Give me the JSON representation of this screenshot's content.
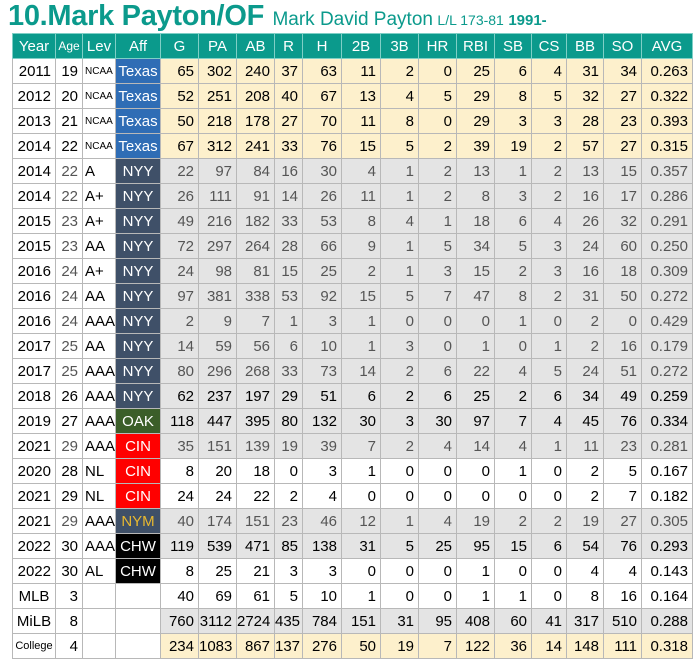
{
  "header": {
    "title": "10.Mark Payton/OF",
    "full_name": "Mark David Payton",
    "bats_throws": "L/L 173-81",
    "born": "1991-"
  },
  "colors": {
    "header_bg": "#0b9a8c",
    "college_bg": "#fdf0cc",
    "milb_bg": "#e4e4e4",
    "texas": "#2f6db5",
    "nyy": "#3f5068",
    "oak": "#3b5e29",
    "cin": "#ff0000",
    "nym": "#3f5068",
    "nym_text": "#e8b830",
    "chw": "#000000"
  },
  "columns": [
    "Year",
    "Age",
    "Lev",
    "Aff",
    "G",
    "PA",
    "AB",
    "R",
    "H",
    "2B",
    "3B",
    "HR",
    "RBI",
    "SB",
    "CS",
    "BB",
    "SO",
    "AVG"
  ],
  "rows": [
    {
      "year": "2011",
      "age": "19",
      "lev": "NCAA",
      "aff": "Texas",
      "type": "college",
      "s": [
        "65",
        "302",
        "240",
        "37",
        "63",
        "11",
        "2",
        "0",
        "25",
        "6",
        "4",
        "31",
        "34",
        "0.263"
      ]
    },
    {
      "year": "2012",
      "age": "20",
      "lev": "NCAA",
      "aff": "Texas",
      "type": "college",
      "s": [
        "52",
        "251",
        "208",
        "40",
        "67",
        "13",
        "4",
        "5",
        "29",
        "8",
        "5",
        "32",
        "27",
        "0.322"
      ]
    },
    {
      "year": "2013",
      "age": "21",
      "lev": "NCAA",
      "aff": "Texas",
      "type": "college",
      "s": [
        "50",
        "218",
        "178",
        "27",
        "70",
        "11",
        "8",
        "0",
        "29",
        "3",
        "3",
        "28",
        "23",
        "0.393"
      ]
    },
    {
      "year": "2014",
      "age": "22",
      "lev": "NCAA",
      "aff": "Texas",
      "type": "college",
      "s": [
        "67",
        "312",
        "241",
        "33",
        "76",
        "15",
        "5",
        "2",
        "39",
        "19",
        "2",
        "57",
        "27",
        "0.315"
      ]
    },
    {
      "year": "2014",
      "age": "22",
      "lev": "A",
      "aff": "NYY",
      "type": "milb dim",
      "s": [
        "22",
        "97",
        "84",
        "16",
        "30",
        "4",
        "1",
        "2",
        "13",
        "1",
        "2",
        "13",
        "15",
        "0.357"
      ]
    },
    {
      "year": "2014",
      "age": "22",
      "lev": "A+",
      "aff": "NYY",
      "type": "milb dim",
      "s": [
        "26",
        "111",
        "91",
        "14",
        "26",
        "11",
        "1",
        "2",
        "8",
        "3",
        "2",
        "16",
        "17",
        "0.286"
      ]
    },
    {
      "year": "2015",
      "age": "23",
      "lev": "A+",
      "aff": "NYY",
      "type": "milb dim",
      "s": [
        "49",
        "216",
        "182",
        "33",
        "53",
        "8",
        "4",
        "1",
        "18",
        "6",
        "4",
        "26",
        "32",
        "0.291"
      ]
    },
    {
      "year": "2015",
      "age": "23",
      "lev": "AA",
      "aff": "NYY",
      "type": "milb dim",
      "s": [
        "72",
        "297",
        "264",
        "28",
        "66",
        "9",
        "1",
        "5",
        "34",
        "5",
        "3",
        "24",
        "60",
        "0.250"
      ]
    },
    {
      "year": "2016",
      "age": "24",
      "lev": "A+",
      "aff": "NYY",
      "type": "milb dim",
      "s": [
        "24",
        "98",
        "81",
        "15",
        "25",
        "2",
        "1",
        "3",
        "15",
        "2",
        "3",
        "16",
        "18",
        "0.309"
      ]
    },
    {
      "year": "2016",
      "age": "24",
      "lev": "AA",
      "aff": "NYY",
      "type": "milb dim",
      "s": [
        "97",
        "381",
        "338",
        "53",
        "92",
        "15",
        "5",
        "7",
        "47",
        "8",
        "2",
        "31",
        "50",
        "0.272"
      ]
    },
    {
      "year": "2016",
      "age": "24",
      "lev": "AAA",
      "aff": "NYY",
      "type": "milb dim",
      "s": [
        "2",
        "9",
        "7",
        "1",
        "3",
        "1",
        "0",
        "0",
        "0",
        "1",
        "0",
        "2",
        "0",
        "0.429"
      ]
    },
    {
      "year": "2017",
      "age": "25",
      "lev": "AA",
      "aff": "NYY",
      "type": "milb dim",
      "s": [
        "14",
        "59",
        "56",
        "6",
        "10",
        "1",
        "3",
        "0",
        "1",
        "0",
        "1",
        "2",
        "16",
        "0.179"
      ]
    },
    {
      "year": "2017",
      "age": "25",
      "lev": "AAA",
      "aff": "NYY",
      "type": "milb dim",
      "s": [
        "80",
        "296",
        "268",
        "33",
        "73",
        "14",
        "2",
        "6",
        "22",
        "4",
        "5",
        "24",
        "51",
        "0.272"
      ]
    },
    {
      "year": "2018",
      "age": "26",
      "lev": "AAA",
      "aff": "NYY",
      "type": "milb",
      "s": [
        "62",
        "237",
        "197",
        "29",
        "51",
        "6",
        "2",
        "6",
        "25",
        "2",
        "6",
        "34",
        "49",
        "0.259"
      ]
    },
    {
      "year": "2019",
      "age": "27",
      "lev": "AAA",
      "aff": "OAK",
      "type": "milb",
      "s": [
        "118",
        "447",
        "395",
        "80",
        "132",
        "30",
        "3",
        "30",
        "97",
        "7",
        "4",
        "45",
        "76",
        "0.334"
      ]
    },
    {
      "year": "2021",
      "age": "29",
      "lev": "AAA",
      "aff": "CIN",
      "type": "milb dim",
      "s": [
        "35",
        "151",
        "139",
        "19",
        "39",
        "7",
        "2",
        "4",
        "14",
        "4",
        "1",
        "11",
        "23",
        "0.281"
      ]
    },
    {
      "year": "2020",
      "age": "28",
      "lev": "NL",
      "aff": "CIN",
      "type": "mlb",
      "s": [
        "8",
        "20",
        "18",
        "0",
        "3",
        "1",
        "0",
        "0",
        "0",
        "1",
        "0",
        "2",
        "5",
        "0.167"
      ]
    },
    {
      "year": "2021",
      "age": "29",
      "lev": "NL",
      "aff": "CIN",
      "type": "mlb",
      "s": [
        "24",
        "24",
        "22",
        "2",
        "4",
        "0",
        "0",
        "0",
        "0",
        "0",
        "0",
        "2",
        "7",
        "0.182"
      ]
    },
    {
      "year": "2021",
      "age": "29",
      "lev": "AAA",
      "aff": "NYM",
      "type": "milb dim",
      "s": [
        "40",
        "174",
        "151",
        "23",
        "46",
        "12",
        "1",
        "4",
        "19",
        "2",
        "2",
        "19",
        "27",
        "0.305"
      ]
    },
    {
      "year": "2022",
      "age": "30",
      "lev": "AAA",
      "aff": "CHW",
      "type": "milb",
      "s": [
        "119",
        "539",
        "471",
        "85",
        "138",
        "31",
        "5",
        "25",
        "95",
        "15",
        "6",
        "54",
        "76",
        "0.293"
      ]
    },
    {
      "year": "2022",
      "age": "30",
      "lev": "AL",
      "aff": "CHW",
      "type": "mlb",
      "s": [
        "8",
        "25",
        "21",
        "3",
        "3",
        "0",
        "0",
        "0",
        "1",
        "0",
        "0",
        "4",
        "4",
        "0.143"
      ]
    },
    {
      "year": "MLB",
      "age": "3",
      "lev": "",
      "aff": "",
      "type": "mlb",
      "s": [
        "40",
        "69",
        "61",
        "5",
        "10",
        "1",
        "0",
        "0",
        "1",
        "1",
        "0",
        "8",
        "16",
        "0.164"
      ]
    },
    {
      "year": "MiLB",
      "age": "8",
      "lev": "",
      "aff": "",
      "type": "milb",
      "s": [
        "760",
        "3112",
        "2724",
        "435",
        "784",
        "151",
        "31",
        "95",
        "408",
        "60",
        "41",
        "317",
        "510",
        "0.288"
      ]
    },
    {
      "year": "College",
      "age": "4",
      "lev": "",
      "aff": "",
      "type": "college",
      "s": [
        "234",
        "1083",
        "867",
        "137",
        "276",
        "50",
        "19",
        "7",
        "122",
        "36",
        "14",
        "148",
        "111",
        "0.318"
      ]
    }
  ]
}
